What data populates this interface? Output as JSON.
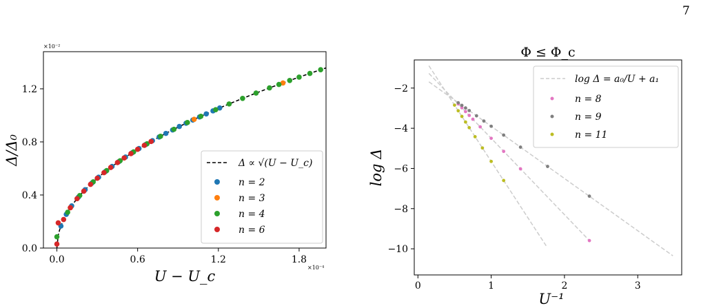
{
  "page": {
    "number": "7"
  },
  "chart_data": [
    {
      "type": "scatter",
      "title": "",
      "xlabel": "U − U_c",
      "ylabel": "Δ/Δ₀",
      "x_scale_label": "×10⁻⁴",
      "y_scale_label": "×10⁻²",
      "xlim": [
        -0.1,
        2.0
      ],
      "ylim": [
        0.0,
        1.48
      ],
      "xticks": [
        0.0,
        0.6,
        1.2,
        1.8
      ],
      "xtick_labels": [
        "0.0",
        "0.6",
        "1.2",
        "1.8"
      ],
      "yticks": [
        0.0,
        0.4,
        0.8,
        1.2
      ],
      "ytick_labels": [
        "0.0",
        "0.4",
        "0.8",
        "1.2"
      ],
      "grid": false,
      "legend_position": "lower-right",
      "fit": {
        "label": "Δ ∝ √(U − U_c)",
        "coef": 0.96,
        "color": "#000000"
      },
      "series": [
        {
          "name": "n = 2",
          "color": "#1f77b4",
          "x": [
            0.03,
            0.07,
            0.11,
            0.16,
            0.21,
            0.26,
            0.31,
            0.36,
            0.41,
            0.46,
            0.51,
            0.56,
            0.61,
            0.66,
            0.71,
            0.76,
            0.81,
            0.86,
            0.91,
            0.96,
            1.01,
            1.06,
            1.11,
            1.16,
            1.21
          ],
          "y": [
            0.166,
            0.254,
            0.318,
            0.384,
            0.44,
            0.49,
            0.534,
            0.576,
            0.615,
            0.651,
            0.686,
            0.718,
            0.75,
            0.78,
            0.809,
            0.837,
            0.864,
            0.89,
            0.916,
            0.941,
            0.965,
            0.988,
            1.011,
            1.034,
            1.056
          ]
        },
        {
          "name": "n = 3",
          "color": "#ff7f0e",
          "x": [
            0.1,
            0.5,
            1.02,
            1.68
          ],
          "y": [
            0.304,
            0.679,
            0.97,
            1.244
          ]
        },
        {
          "name": "n = 4",
          "color": "#2ca02c",
          "x": [
            0.0,
            0.08,
            0.17,
            0.27,
            0.37,
            0.47,
            0.57,
            0.67,
            0.77,
            0.87,
            0.97,
            1.07,
            1.18,
            1.28,
            1.38,
            1.48,
            1.58,
            1.65,
            1.73,
            1.8,
            1.88,
            1.96
          ],
          "y": [
            0.085,
            0.27,
            0.396,
            0.499,
            0.584,
            0.658,
            0.725,
            0.786,
            0.842,
            0.895,
            0.946,
            0.993,
            1.043,
            1.086,
            1.128,
            1.168,
            1.207,
            1.233,
            1.263,
            1.288,
            1.316,
            1.344
          ]
        },
        {
          "name": "n = 6",
          "color": "#d62728",
          "x": [
            0.0,
            0.01,
            0.05,
            0.1,
            0.15,
            0.2,
            0.25,
            0.3,
            0.35,
            0.4,
            0.45,
            0.5,
            0.55,
            0.6,
            0.65,
            0.7
          ],
          "y": [
            0.03,
            0.19,
            0.215,
            0.304,
            0.372,
            0.429,
            0.48,
            0.526,
            0.568,
            0.607,
            0.644,
            0.679,
            0.712,
            0.744,
            0.774,
            0.803
          ]
        }
      ]
    },
    {
      "type": "scatter",
      "title": "Φ ≤ Φ_c",
      "xlabel": "U⁻¹",
      "ylabel": "log Δ",
      "xlim": [
        -0.05,
        3.6
      ],
      "ylim": [
        -11.3,
        -0.6
      ],
      "xticks": [
        0,
        1,
        2,
        3
      ],
      "xtick_labels": [
        "0",
        "1",
        "2",
        "3"
      ],
      "yticks": [
        -10,
        -8,
        -6,
        -4,
        -2
      ],
      "ytick_labels": [
        "−10",
        "−8",
        "−6",
        "−4",
        "−2"
      ],
      "grid": false,
      "legend_position": "upper-right",
      "fit_label": "log Δ = a₀/U + a₁",
      "fits": [
        {
          "a0": -2.6,
          "a1": -1.3,
          "x_range": [
            0.15,
            3.48
          ],
          "color": "#cccccc"
        },
        {
          "a0": -3.8,
          "a1": -0.7,
          "x_range": [
            0.15,
            2.35
          ],
          "color": "#cccccc"
        },
        {
          "a0": -5.6,
          "a1": -0.05,
          "x_range": [
            0.15,
            1.75
          ],
          "color": "#cccccc"
        }
      ],
      "series": [
        {
          "name": "n = 8",
          "color": "#e377c2",
          "x": [
            0.55,
            0.6,
            0.65,
            0.7,
            0.75,
            0.85,
            1.0,
            1.17,
            1.4,
            2.34
          ],
          "y": [
            -2.79,
            -2.98,
            -3.17,
            -3.36,
            -3.55,
            -3.93,
            -4.5,
            -5.15,
            -6.02,
            -9.59
          ]
        },
        {
          "name": "n = 9",
          "color": "#7f7f7f",
          "x": [
            0.55,
            0.6,
            0.65,
            0.7,
            0.8,
            0.9,
            1.0,
            1.17,
            1.4,
            1.77,
            2.34
          ],
          "y": [
            -2.73,
            -2.86,
            -2.99,
            -3.12,
            -3.38,
            -3.64,
            -3.9,
            -4.34,
            -4.94,
            -5.9,
            -7.38
          ]
        },
        {
          "name": "n = 11",
          "color": "#bcbd22",
          "x": [
            0.5,
            0.55,
            0.6,
            0.65,
            0.7,
            0.78,
            0.88,
            1.0,
            1.17
          ],
          "y": [
            -2.85,
            -3.13,
            -3.41,
            -3.69,
            -3.97,
            -4.42,
            -4.98,
            -5.65,
            -6.6
          ]
        }
      ]
    }
  ]
}
